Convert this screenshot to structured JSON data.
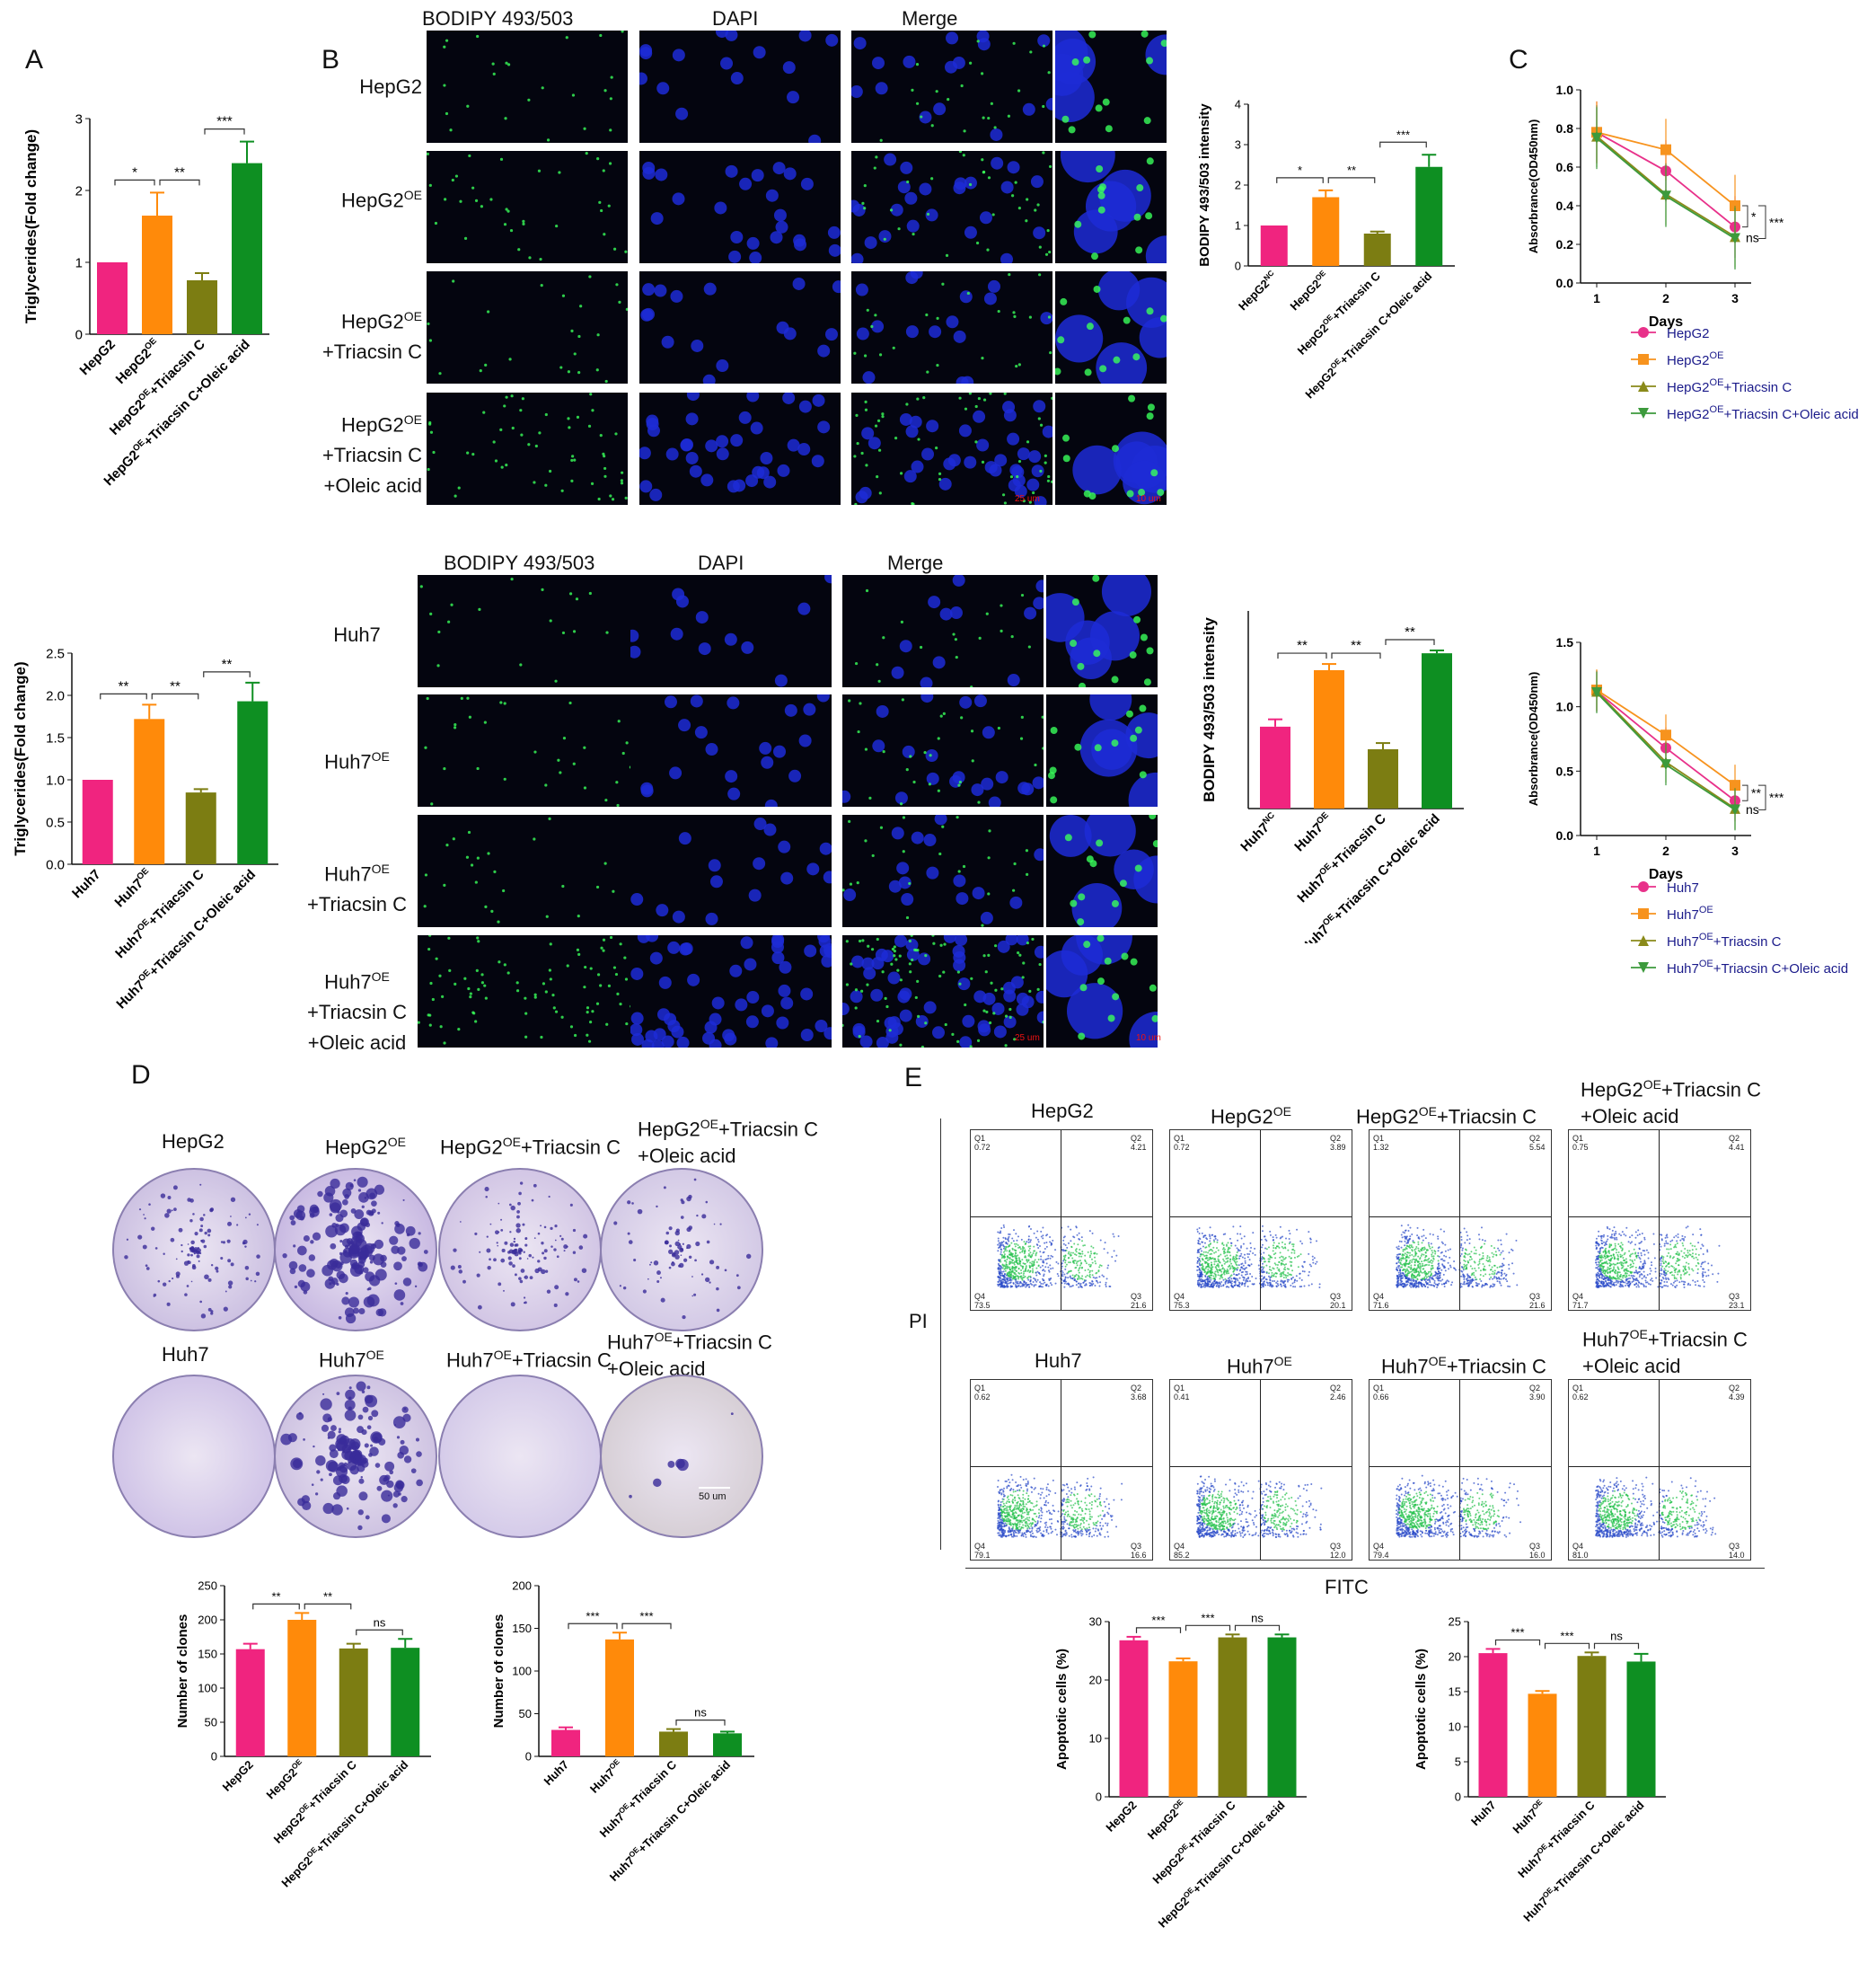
{
  "panels": {
    "A": "A",
    "B": "B",
    "C": "C",
    "D": "D",
    "E": "E"
  },
  "micro": {
    "col_bodipy": "BODIPY 493/503",
    "col_dapi": "DAPI",
    "col_merge": "Merge",
    "hep_rows": [
      [
        "HepG2"
      ],
      [
        "HepG2",
        "OE"
      ],
      [
        "HepG2",
        "OE",
        "+Triacsin C"
      ],
      [
        "HepG2",
        "OE",
        "+Triacsin C",
        "+Oleic acid"
      ]
    ],
    "huh_rows": [
      [
        "Huh7"
      ],
      [
        "Huh7",
        "OE"
      ],
      [
        "Huh7",
        "OE",
        "+Triacsin C"
      ],
      [
        "Huh7",
        "OE",
        "+Triacsin C",
        "+Oleic acid"
      ]
    ],
    "scale_25": "25 um",
    "scale_10": "10 um"
  },
  "dishes": {
    "hep_titles": [
      "HepG2",
      "HepG2OE",
      "HepG2OE+Triacsin C",
      "HepG2OE+Triacsin C\n+Oleic acid"
    ],
    "huh_titles": [
      "Huh7",
      "Huh7OE",
      "Huh7OE+Triacsin C",
      "Huh7OE+Triacsin C\n+Oleic acid"
    ],
    "scale": "50 um"
  },
  "flow": {
    "hep_titles": [
      "HepG2",
      "HepG2OE",
      "HepG2OE+Triacsin C",
      "HepG2OE+Triacsin C\n+Oleic acid"
    ],
    "huh_titles": [
      "Huh7",
      "Huh7OE",
      "Huh7OE+Triacsin C",
      "Huh7OE+Triacsin C\n+Oleic acid"
    ],
    "ylabel": "PI",
    "xlabel": "FITC",
    "hep_quadrants": [
      [
        "0.72",
        "4.21",
        "73.5",
        "21.6"
      ],
      [
        "0.72",
        "3.89",
        "75.3",
        "20.1"
      ],
      [
        "1.32",
        "5.54",
        "71.6",
        "21.6"
      ],
      [
        "0.75",
        "4.41",
        "71.7",
        "23.1"
      ]
    ],
    "huh_quadrants": [
      [
        "0.62",
        "3.68",
        "79.1",
        "16.6"
      ],
      [
        "0.41",
        "2.46",
        "85.2",
        "12.0"
      ],
      [
        "0.66",
        "3.90",
        "79.4",
        "16.0"
      ],
      [
        "0.62",
        "4.39",
        "81.0",
        "14.0"
      ]
    ],
    "qnames": [
      "Q1",
      "Q2",
      "Q4",
      "Q3"
    ]
  },
  "colors": {
    "pink": "#f0247f",
    "orange": "#ff8a0a",
    "olive": "#7c7d12",
    "green": "#0e8f22",
    "line_pink": "#e8318a",
    "line_orange": "#f7931e",
    "line_olive": "#8a8a1a",
    "line_green": "#3c9a3c",
    "legend_text": "#1a1a8a"
  },
  "chart_data": [
    {
      "id": "A_hep",
      "type": "bar",
      "ylabel": "Triglycerides(Fold change)",
      "categories": [
        "HepG2",
        "HepG2OE",
        "HepG2OE+Triacsin C",
        "HepG2OE+Triacsin C+Oleic acid"
      ],
      "values": [
        1.0,
        1.65,
        0.75,
        2.38
      ],
      "errors": [
        0,
        0.32,
        0.1,
        0.3
      ],
      "ylim": [
        0,
        3
      ],
      "ticks": [
        0,
        1,
        2,
        3
      ],
      "sig": [
        {
          "a": 0,
          "b": 1,
          "t": "*"
        },
        {
          "a": 1,
          "b": 2,
          "t": "**"
        },
        {
          "a": 2,
          "b": 3,
          "t": "***"
        }
      ]
    },
    {
      "id": "A_huh",
      "type": "bar",
      "ylabel": "Triglycerides(Fold change)",
      "categories": [
        "Huh7",
        "Huh7OE",
        "Huh7OE+Triacsin C",
        "Huh7OE+Triacsin C+Oleic acid"
      ],
      "values": [
        1.0,
        1.72,
        0.85,
        1.93
      ],
      "errors": [
        0,
        0.17,
        0.04,
        0.22
      ],
      "ylim": [
        0,
        2.5
      ],
      "ticks": [
        0,
        0.5,
        1.0,
        1.5,
        2.0,
        2.5
      ],
      "sig": [
        {
          "a": 0,
          "b": 1,
          "t": "**"
        },
        {
          "a": 1,
          "b": 2,
          "t": "**"
        },
        {
          "a": 2,
          "b": 3,
          "t": "**"
        }
      ]
    },
    {
      "id": "B_hep",
      "type": "bar",
      "ylabel": "BODIPY 493/503 intensity",
      "categories": [
        "HepG2NC",
        "HepG2OE",
        "HepG2OE+Triacsin C",
        "HepG2OE+Triacsin C+Oleic acid"
      ],
      "values": [
        1.0,
        1.7,
        0.8,
        2.45
      ],
      "errors": [
        0,
        0.17,
        0.05,
        0.3
      ],
      "ylim": [
        0,
        4
      ],
      "ticks": [
        0,
        1,
        2,
        3,
        4
      ],
      "sig": [
        {
          "a": 0,
          "b": 1,
          "t": "*"
        },
        {
          "a": 1,
          "b": 2,
          "t": "**"
        },
        {
          "a": 2,
          "b": 3,
          "t": "***"
        }
      ]
    },
    {
      "id": "B_huh",
      "type": "bar",
      "ylabel": "BODIPY 493/503 intensity",
      "categories": [
        "Huh7NC",
        "Huh7OE",
        "Huh7OE+Triacsin C",
        "Huh7OE+Triacsin C+Oleic acid"
      ],
      "values": [
        1.45,
        2.45,
        1.05,
        2.75
      ],
      "errors": [
        0.13,
        0.11,
        0.11,
        0.05
      ],
      "ylim": [
        0,
        3.5
      ],
      "ticks": [],
      "sig": [
        {
          "a": 0,
          "b": 1,
          "t": "**"
        },
        {
          "a": 1,
          "b": 2,
          "t": "**"
        },
        {
          "a": 2,
          "b": 3,
          "t": "**"
        }
      ]
    },
    {
      "id": "C_hep",
      "type": "line",
      "xlabel": "Days",
      "ylabel": "Absorbrance(OD450nm)",
      "x": [
        1,
        2,
        3
      ],
      "ylim": [
        0,
        1.0
      ],
      "ticks": [
        0.0,
        0.2,
        0.4,
        0.6,
        0.8,
        1.0
      ],
      "series": [
        {
          "name": "HepG2",
          "values": [
            0.78,
            0.58,
            0.29
          ]
        },
        {
          "name": "HepG2OE",
          "values": [
            0.78,
            0.69,
            0.4
          ]
        },
        {
          "name": "HepG2OE+Triacsin C",
          "values": [
            0.76,
            0.46,
            0.24
          ]
        },
        {
          "name": "HepG2OE+Triacsin C+Oleic acid",
          "values": [
            0.75,
            0.45,
            0.23
          ]
        }
      ],
      "sig": [
        "*",
        "ns",
        "***"
      ]
    },
    {
      "id": "C_huh",
      "type": "line",
      "xlabel": "Days",
      "ylabel": "Absorbrance(OD450nm)",
      "x": [
        1,
        2,
        3
      ],
      "ylim": [
        0,
        1.5
      ],
      "ticks": [
        0.0,
        0.5,
        1.0,
        1.5
      ],
      "series": [
        {
          "name": "Huh7",
          "values": [
            1.12,
            0.68,
            0.27
          ]
        },
        {
          "name": "Huh7OE",
          "values": [
            1.13,
            0.78,
            0.39
          ]
        },
        {
          "name": "Huh7OE+Triacsin C",
          "values": [
            1.12,
            0.57,
            0.21
          ]
        },
        {
          "name": "Huh7OE+Triacsin C+Oleic acid",
          "values": [
            1.11,
            0.55,
            0.2
          ]
        }
      ],
      "sig": [
        "**",
        "ns",
        "***"
      ]
    },
    {
      "id": "D_hep",
      "type": "bar",
      "ylabel": "Number of clones",
      "categories": [
        "HepG2",
        "HepG2OE",
        "HepG2OE+Triacsin C",
        "HepG2OE+Triacsin C+Oleic acid"
      ],
      "values": [
        157,
        200,
        158,
        159
      ],
      "errors": [
        8,
        10,
        7,
        13
      ],
      "ylim": [
        0,
        250
      ],
      "ticks": [
        0,
        50,
        100,
        150,
        200,
        250
      ],
      "sig": [
        {
          "a": 0,
          "b": 1,
          "t": "**"
        },
        {
          "a": 1,
          "b": 2,
          "t": "**"
        },
        {
          "a": 2,
          "b": 3,
          "t": "ns"
        }
      ]
    },
    {
      "id": "D_huh",
      "type": "bar",
      "ylabel": "Number of clones",
      "categories": [
        "Huh7",
        "Huh7OE",
        "Huh7OE+Triacsin C",
        "Huh7OE+Triacsin C+Oleic acid"
      ],
      "values": [
        31,
        137,
        29,
        27
      ],
      "errors": [
        3,
        8,
        3,
        2
      ],
      "ylim": [
        0,
        200
      ],
      "ticks": [
        0,
        50,
        100,
        150,
        200
      ],
      "sig": [
        {
          "a": 0,
          "b": 1,
          "t": "***"
        },
        {
          "a": 1,
          "b": 2,
          "t": "***"
        },
        {
          "a": 2,
          "b": 3,
          "t": "ns"
        }
      ]
    },
    {
      "id": "E_hep",
      "type": "bar",
      "ylabel": "Apoptotic cells (%)",
      "categories": [
        "HepG2",
        "HepG2OE",
        "HepG2OE+Triacsin C",
        "HepG2OE+Triacsin C+Oleic acid"
      ],
      "values": [
        26.8,
        23.2,
        27.3,
        27.3
      ],
      "errors": [
        0.6,
        0.5,
        0.5,
        0.5
      ],
      "ylim": [
        0,
        30
      ],
      "ticks": [
        0,
        10,
        20,
        30
      ],
      "sig": [
        {
          "a": 0,
          "b": 1,
          "t": "***"
        },
        {
          "a": 1,
          "b": 2,
          "t": "***"
        },
        {
          "a": 2,
          "b": 3,
          "t": "ns"
        }
      ]
    },
    {
      "id": "E_huh",
      "type": "bar",
      "ylabel": "Apoptotic cells (%)",
      "categories": [
        "Huh7",
        "Huh7OE",
        "Huh7OE+Triacsin C",
        "Huh7OE+Triacsin C+Oleic acid"
      ],
      "values": [
        20.5,
        14.7,
        20.1,
        19.3
      ],
      "errors": [
        0.6,
        0.4,
        0.5,
        1.1
      ],
      "ylim": [
        0,
        25
      ],
      "ticks": [
        0,
        5,
        10,
        15,
        20,
        25
      ],
      "sig": [
        {
          "a": 0,
          "b": 1,
          "t": "***"
        },
        {
          "a": 1,
          "b": 2,
          "t": "***"
        },
        {
          "a": 2,
          "b": 3,
          "t": "ns"
        }
      ]
    }
  ]
}
